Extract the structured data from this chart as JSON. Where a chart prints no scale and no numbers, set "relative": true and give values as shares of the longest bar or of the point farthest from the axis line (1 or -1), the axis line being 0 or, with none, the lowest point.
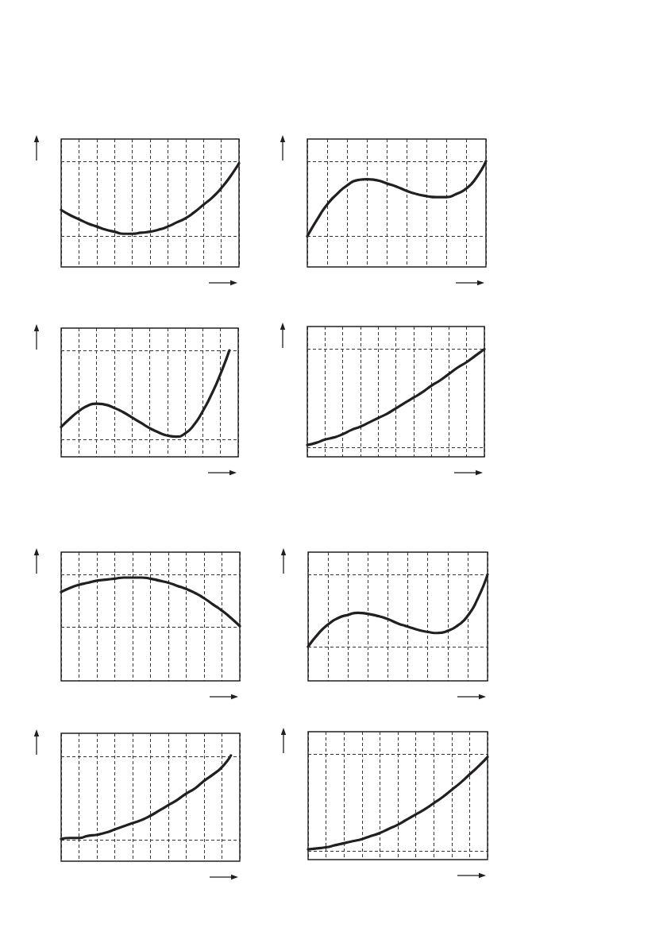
{
  "chart_data": [
    {
      "type": "line",
      "relative": true,
      "categories": [
        null,
        null,
        null,
        null,
        null,
        null,
        null,
        null,
        null,
        null,
        null,
        null,
        null,
        null,
        null,
        null,
        null,
        null,
        null,
        null,
        null
      ],
      "values": [
        0.55,
        0.5,
        0.46,
        0.42,
        0.39,
        0.36,
        0.34,
        0.32,
        0.32,
        0.33,
        0.34,
        0.36,
        0.39,
        0.43,
        0.47,
        0.53,
        0.6,
        0.67,
        0.76,
        0.87,
        1.0
      ],
      "color": "#231f20",
      "line_style": "solid",
      "marker": "none",
      "grid": "x",
      "tick_labels": false,
      "ref_lines": [
        {
          "axis": "y",
          "value": 1.02,
          "color": "#333333",
          "line_style": "dashed"
        },
        {
          "axis": "y",
          "value": 0.3,
          "color": "#333333",
          "line_style": "dashed"
        }
      ]
    },
    {
      "type": "line",
      "relative": true,
      "categories": [
        null,
        null,
        null,
        null,
        null,
        null,
        null,
        null,
        null,
        null,
        null,
        null,
        null,
        null,
        null,
        null,
        null,
        null,
        null
      ],
      "values": [
        0.29,
        0.45,
        0.59,
        0.69,
        0.77,
        0.82,
        0.83,
        0.82,
        0.79,
        0.76,
        0.72,
        0.69,
        0.67,
        0.66,
        0.66,
        0.69,
        0.74,
        0.84,
        1.0
      ],
      "color": "#231f20",
      "line_style": "solid",
      "marker": "none",
      "grid": "x",
      "tick_labels": false,
      "ref_lines": [
        {
          "axis": "y",
          "value": 1.0,
          "color": "#333333",
          "line_style": "dashed"
        },
        {
          "axis": "y",
          "value": 0.29,
          "color": "#333333",
          "line_style": "dashed"
        }
      ]
    },
    {
      "type": "line",
      "relative": true,
      "categories": [
        null,
        null,
        null,
        null,
        null,
        null,
        null,
        null,
        null,
        null,
        null,
        null,
        null,
        null,
        null,
        null,
        null,
        null,
        null,
        null,
        null
      ],
      "values": [
        0.28,
        0.36,
        0.43,
        0.48,
        0.5,
        0.49,
        0.46,
        0.42,
        0.37,
        0.32,
        0.27,
        0.23,
        0.2,
        0.19,
        0.22,
        0.3,
        0.43,
        0.59,
        0.78,
        1.0,
        null
      ],
      "color": "#231f20",
      "line_style": "solid",
      "marker": "none",
      "grid": "x",
      "tick_labels": false,
      "ref_lines": [
        {
          "axis": "y",
          "value": 1.0,
          "color": "#333333",
          "line_style": "dashed"
        },
        {
          "axis": "y",
          "value": 0.16,
          "color": "#333333",
          "line_style": "dashed"
        }
      ]
    },
    {
      "type": "line",
      "relative": true,
      "categories": [
        null,
        null,
        null,
        null,
        null,
        null,
        null,
        null,
        null,
        null,
        null,
        null,
        null,
        null,
        null,
        null,
        null,
        null,
        null,
        null,
        null
      ],
      "values": [
        0.11,
        0.13,
        0.16,
        0.18,
        0.21,
        0.25,
        0.28,
        0.32,
        0.36,
        0.4,
        0.45,
        0.5,
        0.55,
        0.6,
        0.66,
        0.71,
        0.77,
        0.83,
        0.88,
        0.94,
        1.0
      ],
      "color": "#231f20",
      "line_style": "solid",
      "marker": "none",
      "grid": "x",
      "tick_labels": false,
      "ref_lines": [
        {
          "axis": "y",
          "value": 1.0,
          "color": "#333333",
          "line_style": "dashed"
        },
        {
          "axis": "y",
          "value": 0.09,
          "color": "#333333",
          "line_style": "dashed"
        }
      ]
    },
    {
      "type": "line",
      "relative": true,
      "categories": [
        null,
        null,
        null,
        null,
        null,
        null,
        null,
        null,
        null,
        null,
        null,
        null,
        null,
        null,
        null,
        null,
        null,
        null,
        null,
        null,
        null
      ],
      "values": [
        0.86,
        0.9,
        0.93,
        0.95,
        0.97,
        0.98,
        0.99,
        1.0,
        1.0,
        1.0,
        0.99,
        0.97,
        0.95,
        0.92,
        0.89,
        0.85,
        0.8,
        0.74,
        0.68,
        0.61,
        0.53
      ],
      "color": "#231f20",
      "line_style": "solid",
      "marker": "none",
      "grid": "x",
      "tick_labels": false,
      "ref_lines": [
        {
          "axis": "y",
          "value": 1.03,
          "color": "#333333",
          "line_style": "dashed"
        },
        {
          "axis": "y",
          "value": 0.52,
          "color": "#333333",
          "line_style": "dashed"
        }
      ]
    },
    {
      "type": "line",
      "relative": true,
      "categories": [
        null,
        null,
        null,
        null,
        null,
        null,
        null,
        null,
        null,
        null,
        null,
        null,
        null,
        null,
        null,
        null,
        null,
        null,
        null
      ],
      "values": [
        0.32,
        0.44,
        0.53,
        0.59,
        0.62,
        0.64,
        0.63,
        0.61,
        0.58,
        0.54,
        0.51,
        0.48,
        0.46,
        0.45,
        0.47,
        0.52,
        0.61,
        0.77,
        1.0
      ],
      "color": "#231f20",
      "line_style": "solid",
      "marker": "none",
      "grid": "x",
      "tick_labels": false,
      "ref_lines": [
        {
          "axis": "y",
          "value": 1.0,
          "color": "#333333",
          "line_style": "dashed"
        },
        {
          "axis": "y",
          "value": 0.32,
          "color": "#333333",
          "line_style": "dashed"
        }
      ]
    },
    {
      "type": "line",
      "relative": true,
      "categories": [
        null,
        null,
        null,
        null,
        null,
        null,
        null,
        null,
        null,
        null,
        null,
        null,
        null,
        null,
        null,
        null,
        null,
        null,
        null,
        null,
        null
      ],
      "values": [
        0.21,
        0.22,
        0.22,
        0.24,
        0.25,
        0.27,
        0.3,
        0.33,
        0.36,
        0.39,
        0.43,
        0.48,
        0.53,
        0.58,
        0.64,
        0.69,
        0.76,
        0.82,
        0.89,
        1.0,
        null
      ],
      "color": "#231f20",
      "line_style": "solid",
      "marker": "none",
      "grid": "x",
      "tick_labels": false,
      "ref_lines": [
        {
          "axis": "y",
          "value": 0.99,
          "color": "#333333",
          "line_style": "dashed"
        },
        {
          "axis": "y",
          "value": 0.2,
          "color": "#333333",
          "line_style": "dashed"
        }
      ]
    },
    {
      "type": "line",
      "relative": true,
      "categories": [
        null,
        null,
        null,
        null,
        null,
        null,
        null,
        null,
        null,
        null,
        null,
        null,
        null,
        null,
        null,
        null,
        null,
        null,
        null,
        null,
        null
      ],
      "values": [
        0.1,
        0.11,
        0.12,
        0.14,
        0.16,
        0.18,
        0.2,
        0.23,
        0.26,
        0.3,
        0.34,
        0.39,
        0.44,
        0.49,
        0.55,
        0.61,
        0.68,
        0.75,
        0.83,
        0.91,
        1.0
      ],
      "color": "#231f20",
      "line_style": "solid",
      "marker": "none",
      "grid": "x",
      "tick_labels": false,
      "ref_lines": [
        {
          "axis": "y",
          "value": 1.03,
          "color": "#333333",
          "line_style": "dashed"
        },
        {
          "axis": "y",
          "value": 0.08,
          "color": "#333333",
          "line_style": "dashed"
        }
      ]
    }
  ]
}
